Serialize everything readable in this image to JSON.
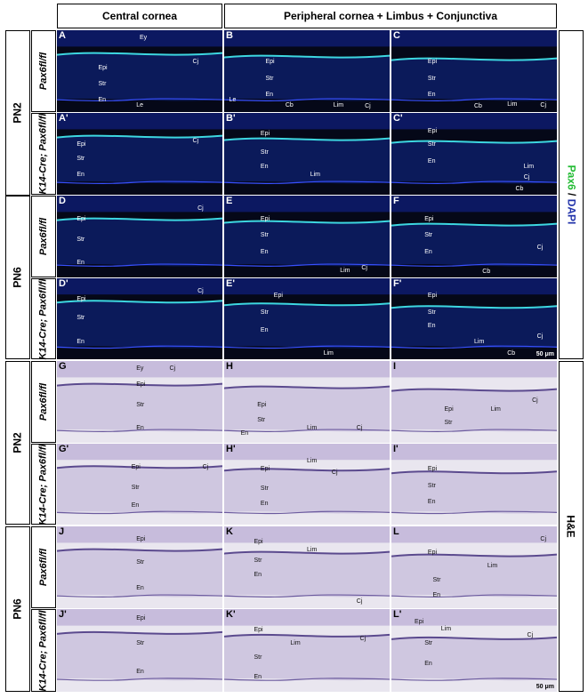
{
  "headers": {
    "central": "Central cornea",
    "peripheral": "Peripheral cornea + Limbus + Conjunctiva"
  },
  "ages": [
    "PN2",
    "PN6",
    "PN2",
    "PN6"
  ],
  "genotypes": [
    "Pax6fl/fl",
    "K14-Cre; Pax6fl/fl"
  ],
  "side_labels": {
    "if_green": "Pax6",
    "if_sep": " / ",
    "if_blue": "DAPI",
    "he": "H&E"
  },
  "scale_bar": "50 μm",
  "colors": {
    "pax6": "#22dd33",
    "dapi": "#3850ff",
    "he_stain": "#6b5a9e"
  },
  "panels": [
    {
      "id": "A",
      "label": "A",
      "tags": [
        "Ey",
        "Epi",
        "Str",
        "En",
        "Le",
        "Cj"
      ]
    },
    {
      "id": "B",
      "label": "B",
      "tags": [
        "Epi",
        "Str",
        "En",
        "Le",
        "Cb",
        "Lim",
        "Cj"
      ]
    },
    {
      "id": "C",
      "label": "C",
      "tags": [
        "Epi",
        "Str",
        "En",
        "Cb",
        "Lim",
        "Cj"
      ]
    },
    {
      "id": "A2",
      "label": "A'",
      "tags": [
        "Epi",
        "Str",
        "En",
        "Cj"
      ]
    },
    {
      "id": "B2",
      "label": "B'",
      "tags": [
        "Epi",
        "Str",
        "En",
        "Lim"
      ]
    },
    {
      "id": "C2",
      "label": "C'",
      "tags": [
        "Epi",
        "Str",
        "En",
        "Lim",
        "Cj",
        "Cb"
      ]
    },
    {
      "id": "D",
      "label": "D",
      "tags": [
        "Epi",
        "Str",
        "En",
        "Cj"
      ]
    },
    {
      "id": "E",
      "label": "E",
      "tags": [
        "Epi",
        "Str",
        "En",
        "Lim",
        "Cj"
      ]
    },
    {
      "id": "F",
      "label": "F",
      "tags": [
        "Epi",
        "Str",
        "En",
        "Cj",
        "Cb"
      ]
    },
    {
      "id": "D2",
      "label": "D'",
      "tags": [
        "Epi",
        "Str",
        "En",
        "Cj"
      ]
    },
    {
      "id": "E2",
      "label": "E'",
      "tags": [
        "Epi",
        "Str",
        "En",
        "Lim"
      ]
    },
    {
      "id": "F2",
      "label": "F'",
      "tags": [
        "Epi",
        "Str",
        "En",
        "Lim",
        "Cj",
        "Cb"
      ]
    },
    {
      "id": "G",
      "label": "G",
      "tags": [
        "Ey",
        "Cj",
        "Epi",
        "Str",
        "En"
      ]
    },
    {
      "id": "H",
      "label": "H",
      "tags": [
        "Epi",
        "Str",
        "En",
        "Lim",
        "Cj"
      ]
    },
    {
      "id": "I",
      "label": "I",
      "tags": [
        "Epi",
        "Str",
        "Lim",
        "Cj"
      ]
    },
    {
      "id": "G2",
      "label": "G'",
      "tags": [
        "Epi",
        "Cj",
        "Str",
        "En"
      ]
    },
    {
      "id": "H2",
      "label": "H'",
      "tags": [
        "Epi",
        "Lim",
        "Cj",
        "Str",
        "En"
      ]
    },
    {
      "id": "I2",
      "label": "I'",
      "tags": [
        "Epi",
        "Str",
        "En"
      ]
    },
    {
      "id": "J",
      "label": "J",
      "tags": [
        "Epi",
        "Str",
        "En"
      ]
    },
    {
      "id": "K",
      "label": "K",
      "tags": [
        "Epi",
        "Lim",
        "Str",
        "En",
        "Cj"
      ]
    },
    {
      "id": "L",
      "label": "L",
      "tags": [
        "Epi",
        "Cj",
        "Lim",
        "Str",
        "En"
      ]
    },
    {
      "id": "J2",
      "label": "J'",
      "tags": [
        "Epi",
        "Str",
        "En"
      ]
    },
    {
      "id": "K2",
      "label": "K'",
      "tags": [
        "Epi",
        "Lim",
        "Cj",
        "Str",
        "En"
      ]
    },
    {
      "id": "L2",
      "label": "L'",
      "tags": [
        "Epi",
        "Lim",
        "Cj",
        "Str",
        "En"
      ]
    }
  ]
}
